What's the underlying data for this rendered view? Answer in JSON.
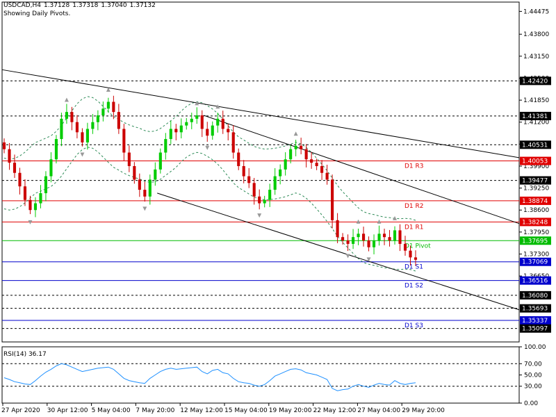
{
  "header": {
    "symbol": "USDCAD,H4",
    "open": "1.37128",
    "high": "1.37318",
    "low": "1.37040",
    "close": "1.37132",
    "note": "Showing Daily Pivots."
  },
  "colors": {
    "bull": "#00cc00",
    "bear": "#cc0000",
    "pivot_resistance": "#e00000",
    "pivot_main": "#00bb00",
    "pivot_support": "#0000cc",
    "bands": "#2e8b57",
    "trendline": "#000000",
    "rsi_line": "#1e90ff",
    "label_bg": "#000000"
  },
  "chart_data": [
    {
      "type": "candlestick",
      "title": "USDCAD,H4",
      "ylim": [
        1.347,
        1.4475
      ],
      "price_ticks": [
        "1.44475",
        "1.43800",
        "1.43150",
        "1.42500",
        "1.41850",
        "1.41200",
        "1.40550",
        "1.39900",
        "1.39250",
        "1.38600",
        "1.37950",
        "1.37300",
        "1.36650"
      ],
      "x_ticks": [
        "27 Apr 2020",
        "30 Apr 12:00",
        "5 May 04:00",
        "7 May 20:00",
        "12 May 12:00",
        "15 May 04:00",
        "19 May 20:00",
        "22 May 12:00",
        "27 May 04:00",
        "29 May 20:00"
      ],
      "closes": [
        1.404,
        1.4,
        1.397,
        1.393,
        1.389,
        1.386,
        1.388,
        1.391,
        1.396,
        1.401,
        1.407,
        1.413,
        1.415,
        1.412,
        1.409,
        1.406,
        1.41,
        1.412,
        1.414,
        1.416,
        1.418,
        1.415,
        1.41,
        1.403,
        1.399,
        1.395,
        1.392,
        1.39,
        1.395,
        1.398,
        1.403,
        1.407,
        1.41,
        1.409,
        1.411,
        1.412,
        1.413,
        1.414,
        1.41,
        1.408,
        1.411,
        1.413,
        1.41,
        1.409,
        1.403,
        1.399,
        1.396,
        1.394,
        1.39,
        1.388,
        1.389,
        1.392,
        1.396,
        1.398,
        1.401,
        1.404,
        1.405,
        1.404,
        1.401,
        1.4,
        1.399,
        1.397,
        1.395,
        1.383,
        1.378,
        1.377,
        1.376,
        1.378,
        1.379,
        1.377,
        1.375,
        1.377,
        1.379,
        1.378,
        1.377,
        1.38,
        1.376,
        1.374,
        1.372,
        1.3713
      ],
      "pivot_levels": [
        {
          "name": "D1 R3",
          "value": 1.40053,
          "group": "resistance"
        },
        {
          "name": "D1 R2",
          "value": 1.38874,
          "group": "resistance"
        },
        {
          "name": "D1 R1",
          "value": 1.38248,
          "group": "resistance"
        },
        {
          "name": "D1 Pivot",
          "value": 1.37695,
          "group": "pivot"
        },
        {
          "name": "D1 S1",
          "value": 1.37069,
          "group": "support"
        },
        {
          "name": "D1 S2",
          "value": 1.36516,
          "group": "support"
        },
        {
          "name": "D1 S3",
          "value": 1.35337,
          "group": "support"
        }
      ],
      "horizontal_levels": [
        1.4242,
        1.41381,
        1.40531,
        1.39477,
        1.3608,
        1.35693,
        1.35097
      ],
      "price_labels": [
        "1.42420",
        "1.41381",
        "1.40531",
        "1.40053",
        "1.39477",
        "1.38874",
        "1.38248",
        "1.37695",
        "1.37069",
        "1.36516",
        "1.36080",
        "1.35693",
        "1.35337",
        "1.35097"
      ],
      "trendlines": [
        {
          "x1": 0.0,
          "y1": 1.4275,
          "x2": 1.0,
          "y2": 1.4015
        },
        {
          "x1": 0.39,
          "y1": 1.414,
          "x2": 1.0,
          "y2": 1.382
        },
        {
          "x1": 0.3,
          "y1": 1.391,
          "x2": 1.0,
          "y2": 1.3565
        }
      ]
    },
    {
      "type": "line",
      "title": "RSI(14) 36.17",
      "ylim": [
        0,
        100
      ],
      "levels": [
        70,
        30
      ],
      "ticks": [
        "100.00",
        "70.00",
        "50.00",
        "30.00",
        "0.00"
      ],
      "values": [
        45,
        42,
        38,
        36,
        34,
        33,
        40,
        48,
        55,
        60,
        66,
        70,
        68,
        64,
        60,
        56,
        58,
        60,
        62,
        63,
        64,
        60,
        52,
        44,
        40,
        38,
        36,
        35,
        44,
        50,
        56,
        60,
        62,
        60,
        61,
        62,
        63,
        64,
        56,
        52,
        58,
        60,
        54,
        52,
        44,
        38,
        36,
        35,
        32,
        30,
        33,
        40,
        48,
        52,
        56,
        60,
        61,
        59,
        54,
        52,
        50,
        46,
        42,
        26,
        22,
        24,
        25,
        30,
        33,
        30,
        28,
        32,
        35,
        33,
        32,
        40,
        35,
        33,
        35,
        36.17
      ]
    }
  ]
}
